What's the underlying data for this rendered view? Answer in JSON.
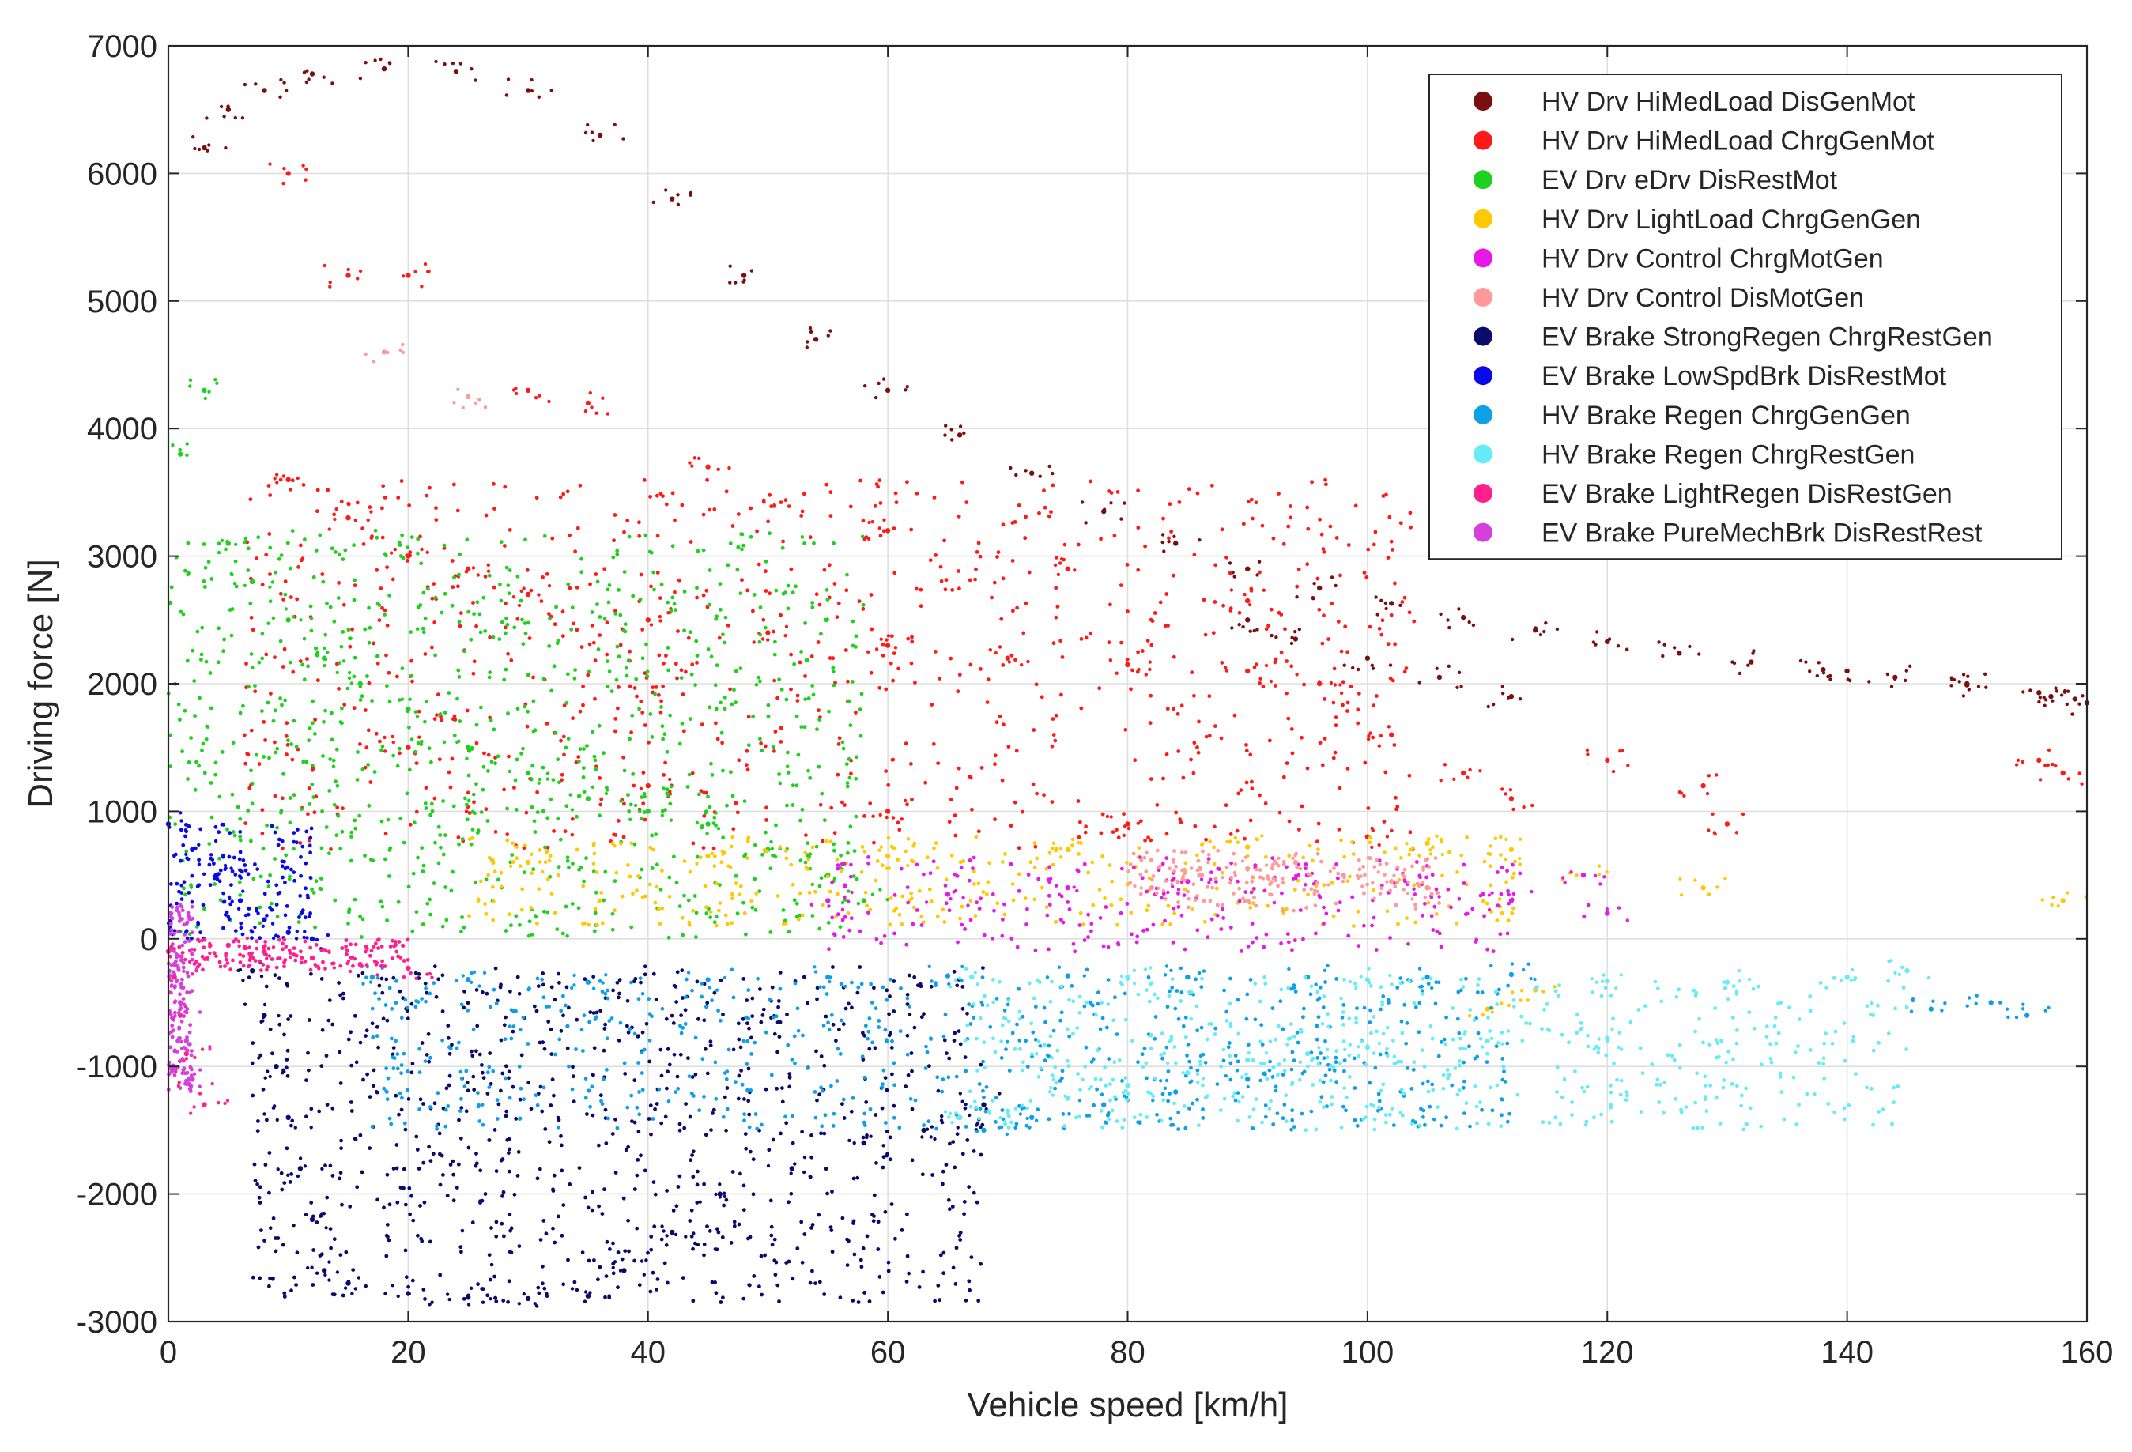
{
  "chart_data": {
    "type": "scatter",
    "title": "",
    "xlabel": "Vehicle speed [km/h]",
    "ylabel": "Driving force [N]",
    "xlim": [
      0,
      160
    ],
    "ylim": [
      -3000,
      7000
    ],
    "x_ticks": [
      0,
      20,
      40,
      60,
      80,
      100,
      120,
      140,
      160
    ],
    "y_ticks": [
      -3000,
      -2000,
      -1000,
      0,
      1000,
      2000,
      3000,
      4000,
      5000,
      6000,
      7000
    ],
    "x_tick_labels": [
      "0",
      "20",
      "40",
      "60",
      "80",
      "100",
      "120",
      "140",
      "160"
    ],
    "y_tick_labels": [
      "-3000",
      "-2000",
      "-1000",
      "0",
      "1000",
      "2000",
      "3000",
      "4000",
      "5000",
      "6000",
      "7000"
    ],
    "grid": true,
    "legend_position": "top-right",
    "series": [
      {
        "name": "HV Drv HiMedLoad DisGenMot",
        "color": "#7a0f0f",
        "points": [
          [
            3,
            6200
          ],
          [
            5,
            6500
          ],
          [
            8,
            6650
          ],
          [
            12,
            6780
          ],
          [
            18,
            6820
          ],
          [
            24,
            6800
          ],
          [
            30,
            6650
          ],
          [
            36,
            6300
          ],
          [
            42,
            5800
          ],
          [
            48,
            5200
          ],
          [
            54,
            4700
          ],
          [
            60,
            4300
          ],
          [
            66,
            3950
          ],
          [
            72,
            3650
          ],
          [
            78,
            3350
          ],
          [
            84,
            3100
          ],
          [
            90,
            2900
          ],
          [
            96,
            2750
          ],
          [
            102,
            2630
          ],
          [
            108,
            2520
          ],
          [
            114,
            2420
          ],
          [
            120,
            2330
          ],
          [
            126,
            2240
          ],
          [
            132,
            2170
          ],
          [
            138,
            2110
          ],
          [
            144,
            2050
          ],
          [
            150,
            1990
          ],
          [
            156,
            1930
          ],
          [
            159,
            1880
          ],
          [
            90,
            2500
          ],
          [
            94,
            2350
          ],
          [
            100,
            2200
          ],
          [
            106,
            2050
          ],
          [
            112,
            1900
          ],
          [
            140,
            2100
          ],
          [
            150,
            2000
          ],
          [
            157,
            1900
          ],
          [
            160,
            1850
          ]
        ]
      },
      {
        "name": "HV Drv HiMedLoad ChrgGenMot",
        "color": "#ff1a1a",
        "region": {
          "x_min": 6,
          "x_max": 104,
          "y_min": 700,
          "y_max": 3600
        },
        "points": [
          [
            10,
            3600
          ],
          [
            15,
            3300
          ],
          [
            20,
            3000
          ],
          [
            25,
            2900
          ],
          [
            30,
            2700
          ],
          [
            40,
            2500
          ],
          [
            50,
            2400
          ],
          [
            60,
            2300
          ],
          [
            70,
            2200
          ],
          [
            80,
            2150
          ],
          [
            90,
            2100
          ],
          [
            96,
            2000
          ],
          [
            102,
            1600
          ],
          [
            108,
            1300
          ],
          [
            112,
            1100
          ],
          [
            120,
            1400
          ],
          [
            128,
            1200
          ],
          [
            130,
            900
          ],
          [
            156,
            1400
          ],
          [
            158,
            1300
          ],
          [
            20,
            1500
          ],
          [
            40,
            1200
          ],
          [
            60,
            1000
          ],
          [
            80,
            900
          ],
          [
            100,
            800
          ],
          [
            15,
            5200
          ],
          [
            30,
            4300
          ],
          [
            45,
            3700
          ],
          [
            60,
            3200
          ],
          [
            75,
            2900
          ],
          [
            90,
            2650
          ],
          [
            10,
            6000
          ],
          [
            20,
            5200
          ],
          [
            35,
            4200
          ]
        ]
      },
      {
        "name": "EV Drv eDrv DisRestMot",
        "color": "#1fd11f",
        "region": {
          "x_min": 0,
          "x_max": 58,
          "y_min": 0,
          "y_max": 3200
        },
        "points": [
          [
            1,
            3800
          ],
          [
            3,
            4300
          ],
          [
            5,
            3100
          ],
          [
            7,
            2800
          ],
          [
            10,
            2500
          ],
          [
            13,
            2200
          ],
          [
            16,
            2000
          ],
          [
            20,
            1800
          ],
          [
            25,
            1500
          ],
          [
            30,
            1300
          ],
          [
            35,
            1100
          ],
          [
            40,
            1000
          ],
          [
            45,
            900
          ],
          [
            50,
            700
          ],
          [
            55,
            500
          ],
          [
            58,
            300
          ]
        ]
      },
      {
        "name": "HV Drv LightLoad ChrgGenGen",
        "color": "#ffc800",
        "region": {
          "x_min": 25,
          "x_max": 113,
          "y_min": 100,
          "y_max": 800
        },
        "points": [
          [
            30,
            600
          ],
          [
            45,
            650
          ],
          [
            60,
            650
          ],
          [
            75,
            700
          ],
          [
            90,
            720
          ],
          [
            105,
            750
          ],
          [
            112,
            700
          ],
          [
            118,
            500
          ],
          [
            128,
            400
          ],
          [
            158,
            300
          ],
          [
            114,
            -400
          ],
          [
            110,
            -550
          ]
        ]
      },
      {
        "name": "HV Drv Control ChrgMotGen",
        "color": "#e619e6",
        "region": {
          "x_min": 55,
          "x_max": 113,
          "y_min": -100,
          "y_max": 650
        },
        "points": [
          [
            55,
            300
          ],
          [
            65,
            350
          ],
          [
            75,
            400
          ],
          [
            85,
            450
          ],
          [
            95,
            500
          ],
          [
            105,
            400
          ],
          [
            112,
            300
          ],
          [
            120,
            200
          ],
          [
            118,
            500
          ]
        ]
      },
      {
        "name": "HV Drv Control DisMotGen",
        "color": "#ff9a9a",
        "region": {
          "x_min": 80,
          "x_max": 106,
          "y_min": 200,
          "y_max": 700
        },
        "points": [
          [
            82,
            400
          ],
          [
            86,
            500
          ],
          [
            90,
            550
          ],
          [
            94,
            600
          ],
          [
            98,
            500
          ],
          [
            102,
            450
          ],
          [
            105,
            400
          ],
          [
            18,
            4600
          ],
          [
            25,
            4250
          ]
        ]
      },
      {
        "name": "EV Brake StrongRegen ChrgRestGen",
        "color": "#0b0b6b",
        "region": {
          "x_min": 7,
          "x_max": 68,
          "y_min": -2850,
          "y_max": -200
        },
        "points": [
          [
            7,
            -250
          ],
          [
            8,
            -600
          ],
          [
            9,
            -1000
          ],
          [
            10,
            -1400
          ],
          [
            11,
            -1800
          ],
          [
            12,
            -2200
          ],
          [
            13,
            -2600
          ],
          [
            15,
            -2700
          ],
          [
            20,
            -2780
          ],
          [
            25,
            -2810
          ],
          [
            30,
            -2820
          ],
          [
            35,
            -2800
          ],
          [
            38,
            -2600
          ],
          [
            42,
            -2300
          ],
          [
            46,
            -2000
          ],
          [
            52,
            -1800
          ],
          [
            58,
            -1600
          ],
          [
            63,
            -1500
          ],
          [
            66,
            -1400
          ],
          [
            68,
            -1300
          ]
        ]
      },
      {
        "name": "EV Brake LowSpdBrk DisRestMot",
        "color": "#0a0ae6",
        "region": {
          "x_min": 0,
          "x_max": 12,
          "y_min": 0,
          "y_max": 900
        },
        "points": [
          [
            0,
            900
          ],
          [
            2,
            700
          ],
          [
            4,
            500
          ],
          [
            6,
            300
          ],
          [
            8,
            150
          ],
          [
            10,
            50
          ],
          [
            12,
            0
          ]
        ]
      },
      {
        "name": "HV Brake Regen ChrgGenGen",
        "color": "#0ea0e6",
        "region": {
          "x_min": 17,
          "x_max": 112,
          "y_min": -1500,
          "y_max": -300
        },
        "points": [
          [
            17,
            -300
          ],
          [
            25,
            -320
          ],
          [
            35,
            -340
          ],
          [
            45,
            -320
          ],
          [
            55,
            -300
          ],
          [
            65,
            -290
          ],
          [
            75,
            -290
          ],
          [
            85,
            -300
          ],
          [
            95,
            -300
          ],
          [
            105,
            -300
          ],
          [
            112,
            -280
          ],
          [
            68,
            -1500
          ],
          [
            72,
            -1400
          ],
          [
            78,
            -1300
          ],
          [
            84,
            -1200
          ],
          [
            90,
            -1100
          ],
          [
            152,
            -500
          ],
          [
            155,
            -600
          ],
          [
            147,
            -550
          ]
        ]
      },
      {
        "name": "HV Brake Regen ChrgRestGen",
        "color": "#66ecf5",
        "region": {
          "x_min": 66,
          "x_max": 145,
          "y_min": -1500,
          "y_max": -300
        },
        "points": [
          [
            66,
            -1400
          ],
          [
            70,
            -1350
          ],
          [
            75,
            -1250
          ],
          [
            80,
            -1150
          ],
          [
            85,
            -1050
          ],
          [
            90,
            -950
          ],
          [
            95,
            -900
          ],
          [
            100,
            -850
          ],
          [
            110,
            -800
          ],
          [
            120,
            -780
          ],
          [
            67,
            -300
          ],
          [
            80,
            -300
          ],
          [
            100,
            -320
          ],
          [
            120,
            -330
          ],
          [
            130,
            -340
          ],
          [
            140,
            -300
          ],
          [
            145,
            -250
          ]
        ]
      },
      {
        "name": "EV Brake LightRegen DisRestGen",
        "color": "#ff1f8f",
        "region": {
          "x_min": 0,
          "x_max": 20,
          "y_min": -250,
          "y_max": 0
        },
        "points": [
          [
            0,
            -100
          ],
          [
            0.5,
            -300
          ],
          [
            1,
            -600
          ],
          [
            1.5,
            -900
          ],
          [
            2,
            -1100
          ],
          [
            3,
            -1300
          ],
          [
            5,
            -50
          ],
          [
            8,
            -100
          ],
          [
            12,
            -150
          ],
          [
            16,
            -200
          ],
          [
            20,
            -230
          ]
        ]
      },
      {
        "name": "EV Brake PureMechBrk DisRestRest",
        "color": "#d63fdc",
        "region": {
          "x_min": 0,
          "x_max": 2,
          "y_min": -1200,
          "y_max": 300
        },
        "points": [
          [
            0.2,
            200
          ],
          [
            0.5,
            -200
          ],
          [
            1,
            -500
          ],
          [
            1.5,
            -800
          ],
          [
            2,
            -1100
          ]
        ]
      }
    ]
  }
}
